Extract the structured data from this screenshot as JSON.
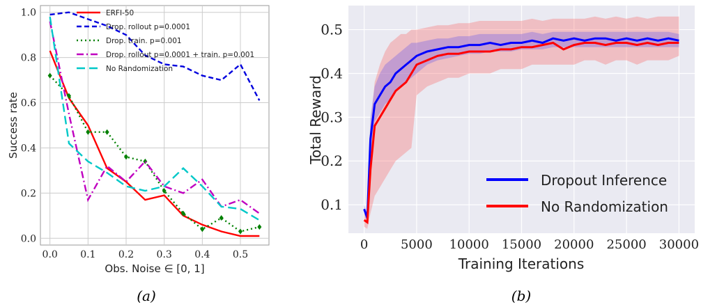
{
  "chart_data": [
    {
      "type": "line",
      "panel_label": "(a)",
      "xlabel": "Obs. Noise ∈ [0, 1]",
      "ylabel": "Success rate",
      "xlim": [
        -0.025,
        0.575
      ],
      "ylim": [
        -0.03,
        1.03
      ],
      "xticks": [
        0.0,
        0.1,
        0.2,
        0.3,
        0.4,
        0.5
      ],
      "xtick_labels": [
        "0.0",
        "0.1",
        "0.2",
        "0.3",
        "0.4",
        "0.5"
      ],
      "yticks": [
        0.0,
        0.2,
        0.4,
        0.6,
        0.8,
        1.0
      ],
      "ytick_labels": [
        "0.0",
        "0.2",
        "0.4",
        "0.6",
        "0.8",
        "1.0"
      ],
      "grid": true,
      "legend_position": "top-right",
      "x": [
        0.0,
        0.05,
        0.1,
        0.15,
        0.2,
        0.25,
        0.3,
        0.35,
        0.4,
        0.45,
        0.5,
        0.55
      ],
      "series": [
        {
          "name": "ERFI-50",
          "color": "#ff0000",
          "style": "solid",
          "values": [
            0.83,
            0.62,
            0.5,
            0.31,
            0.25,
            0.17,
            0.19,
            0.1,
            0.06,
            0.03,
            0.01,
            0.01
          ]
        },
        {
          "name": "Drop. rollout p=0.0001",
          "color": "#0000dd",
          "style": "dashed",
          "values": [
            0.99,
            1.0,
            0.97,
            0.94,
            0.9,
            0.81,
            0.77,
            0.76,
            0.72,
            0.7,
            0.77,
            0.61
          ]
        },
        {
          "name": "Drop. train. p=0.001",
          "color": "#008000",
          "style": "dotted",
          "values": [
            0.72,
            0.63,
            0.47,
            0.47,
            0.36,
            0.34,
            0.21,
            0.11,
            0.04,
            0.09,
            0.03,
            0.05
          ]
        },
        {
          "name": "Drop. rollout p=0.0001 + train. p=0.001",
          "color": "#c000c0",
          "style": "dashdot",
          "values": [
            0.96,
            0.55,
            0.17,
            0.32,
            0.25,
            0.34,
            0.23,
            0.2,
            0.26,
            0.14,
            0.17,
            0.11
          ]
        },
        {
          "name": "No Randomization",
          "color": "#00c8c8",
          "style": "longdash",
          "values": [
            0.98,
            0.42,
            0.34,
            0.29,
            0.23,
            0.21,
            0.23,
            0.31,
            0.23,
            0.14,
            0.13,
            0.08
          ]
        }
      ]
    },
    {
      "type": "line",
      "panel_label": "(b)",
      "xlabel": "Training Iterations",
      "ylabel": "Total Reward",
      "xlim": [
        -1500,
        31500
      ],
      "ylim": [
        0.035,
        0.555
      ],
      "xticks": [
        0,
        5000,
        10000,
        15000,
        20000,
        25000,
        30000
      ],
      "xtick_labels": [
        "0",
        "5000",
        "10000",
        "15000",
        "20000",
        "25000",
        "30000"
      ],
      "yticks": [
        0.1,
        0.2,
        0.3,
        0.4,
        0.5
      ],
      "ytick_labels": [
        "0.1",
        "0.2",
        "0.3",
        "0.4",
        "0.5"
      ],
      "grid": true,
      "legend_position": "bottom-right",
      "x": [
        0,
        300,
        600,
        1000,
        1500,
        2000,
        2500,
        3000,
        3500,
        4000,
        4500,
        5000,
        6000,
        7000,
        8000,
        9000,
        10000,
        11000,
        12000,
        13000,
        14000,
        15000,
        16000,
        17000,
        18000,
        19000,
        20000,
        21000,
        22000,
        23000,
        24000,
        25000,
        26000,
        27000,
        28000,
        29000,
        30000
      ],
      "series": [
        {
          "name": "Dropout Inference",
          "color": "#0000ff",
          "values": [
            0.09,
            0.07,
            0.25,
            0.33,
            0.35,
            0.37,
            0.38,
            0.4,
            0.41,
            0.42,
            0.43,
            0.44,
            0.45,
            0.455,
            0.46,
            0.46,
            0.465,
            0.465,
            0.47,
            0.465,
            0.47,
            0.47,
            0.475,
            0.47,
            0.48,
            0.475,
            0.48,
            0.475,
            0.48,
            0.48,
            0.475,
            0.48,
            0.475,
            0.48,
            0.475,
            0.48,
            0.475
          ],
          "lower": [
            0.08,
            0.06,
            0.2,
            0.29,
            0.31,
            0.33,
            0.34,
            0.36,
            0.37,
            0.38,
            0.39,
            0.4,
            0.42,
            0.43,
            0.435,
            0.44,
            0.445,
            0.445,
            0.45,
            0.45,
            0.45,
            0.455,
            0.455,
            0.455,
            0.46,
            0.46,
            0.46,
            0.46,
            0.46,
            0.46,
            0.46,
            0.46,
            0.46,
            0.46,
            0.46,
            0.46,
            0.46
          ],
          "upper": [
            0.1,
            0.08,
            0.3,
            0.37,
            0.4,
            0.42,
            0.43,
            0.44,
            0.45,
            0.46,
            0.47,
            0.47,
            0.475,
            0.48,
            0.48,
            0.485,
            0.485,
            0.49,
            0.49,
            0.49,
            0.49,
            0.49,
            0.495,
            0.49,
            0.495,
            0.495,
            0.495,
            0.495,
            0.495,
            0.495,
            0.495,
            0.495,
            0.495,
            0.495,
            0.495,
            0.495,
            0.49
          ]
        },
        {
          "name": "No Randomization",
          "color": "#ff0000",
          "values": [
            0.065,
            0.06,
            0.18,
            0.28,
            0.3,
            0.32,
            0.34,
            0.36,
            0.37,
            0.38,
            0.4,
            0.42,
            0.43,
            0.44,
            0.445,
            0.445,
            0.45,
            0.45,
            0.45,
            0.455,
            0.455,
            0.46,
            0.46,
            0.465,
            0.47,
            0.455,
            0.465,
            0.47,
            0.47,
            0.465,
            0.47,
            0.47,
            0.465,
            0.47,
            0.465,
            0.47,
            0.47
          ],
          "lower": [
            0.05,
            0.045,
            0.08,
            0.12,
            0.14,
            0.16,
            0.18,
            0.2,
            0.21,
            0.22,
            0.23,
            0.35,
            0.37,
            0.38,
            0.39,
            0.39,
            0.4,
            0.4,
            0.4,
            0.41,
            0.41,
            0.41,
            0.42,
            0.42,
            0.42,
            0.42,
            0.42,
            0.43,
            0.43,
            0.42,
            0.43,
            0.43,
            0.42,
            0.43,
            0.43,
            0.43,
            0.44
          ],
          "upper": [
            0.08,
            0.075,
            0.28,
            0.38,
            0.42,
            0.45,
            0.47,
            0.48,
            0.49,
            0.49,
            0.5,
            0.5,
            0.505,
            0.51,
            0.51,
            0.515,
            0.515,
            0.52,
            0.52,
            0.52,
            0.52,
            0.52,
            0.525,
            0.52,
            0.525,
            0.525,
            0.525,
            0.525,
            0.53,
            0.525,
            0.53,
            0.525,
            0.53,
            0.525,
            0.53,
            0.53,
            0.53
          ]
        }
      ]
    }
  ]
}
